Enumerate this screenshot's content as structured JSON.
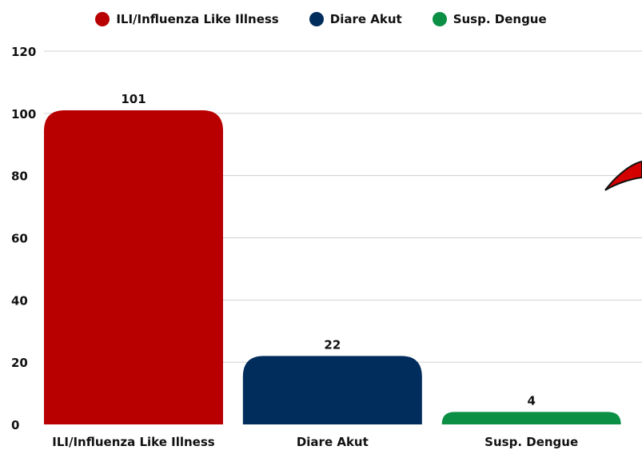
{
  "chart_data": {
    "type": "bar",
    "categories": [
      "ILI/Influenza Like Illness",
      "Diare Akut",
      "Susp. Dengue"
    ],
    "values": [
      101,
      22,
      4
    ],
    "colors": [
      "#b80000",
      "#002d5c",
      "#0a8f45"
    ],
    "series": [
      {
        "name": "ILI/Influenza Like Illness",
        "color": "#b80000"
      },
      {
        "name": "Diare Akut",
        "color": "#002d5c"
      },
      {
        "name": "Susp. Dengue",
        "color": "#0a8f45"
      }
    ],
    "yticks": [
      0,
      20,
      40,
      60,
      80,
      100,
      120
    ],
    "ylim": [
      0,
      120
    ],
    "grid": true,
    "legend_position": "top-center"
  }
}
